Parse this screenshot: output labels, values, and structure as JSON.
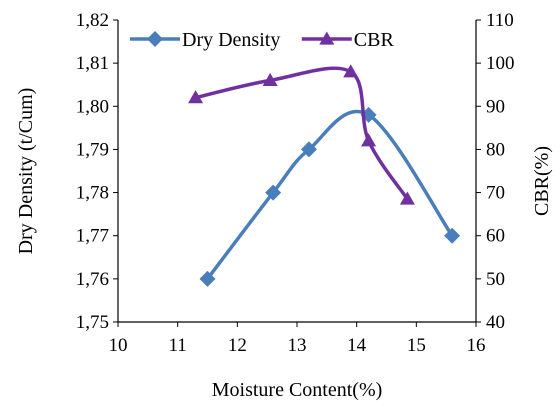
{
  "chart_data": {
    "type": "line",
    "xlabel": "Moisture Content(%)",
    "ylabel": "Dry Density (t/Cum)",
    "y2label": "CBR(%)",
    "xlim": [
      10,
      16
    ],
    "ylim": [
      1.75,
      1.82
    ],
    "y2lim": [
      40,
      110
    ],
    "x_ticks": [
      "10",
      "11",
      "12",
      "13",
      "14",
      "15",
      "16"
    ],
    "y_ticks": [
      "1,75",
      "1,76",
      "1,77",
      "1,78",
      "1,79",
      "1,80",
      "1,81",
      "1,82"
    ],
    "y2_ticks": [
      "40",
      "50",
      "60",
      "70",
      "80",
      "90",
      "100",
      "110"
    ],
    "grid": false,
    "legend_position": "top",
    "series": [
      {
        "name": "Dry Density",
        "axis": "left",
        "color": "#4a7ebb",
        "marker": "diamond",
        "smooth": true,
        "x": [
          11.5,
          12.6,
          13.2,
          14.2,
          15.6
        ],
        "y": [
          1.76,
          1.78,
          1.79,
          1.798,
          1.77
        ]
      },
      {
        "name": "CBR",
        "axis": "right",
        "color": "#7030a0",
        "marker": "triangle",
        "smooth": true,
        "x": [
          11.3,
          12.55,
          13.9,
          14.2,
          14.85
        ],
        "y": [
          92,
          96,
          98,
          82,
          68.5
        ]
      }
    ]
  }
}
